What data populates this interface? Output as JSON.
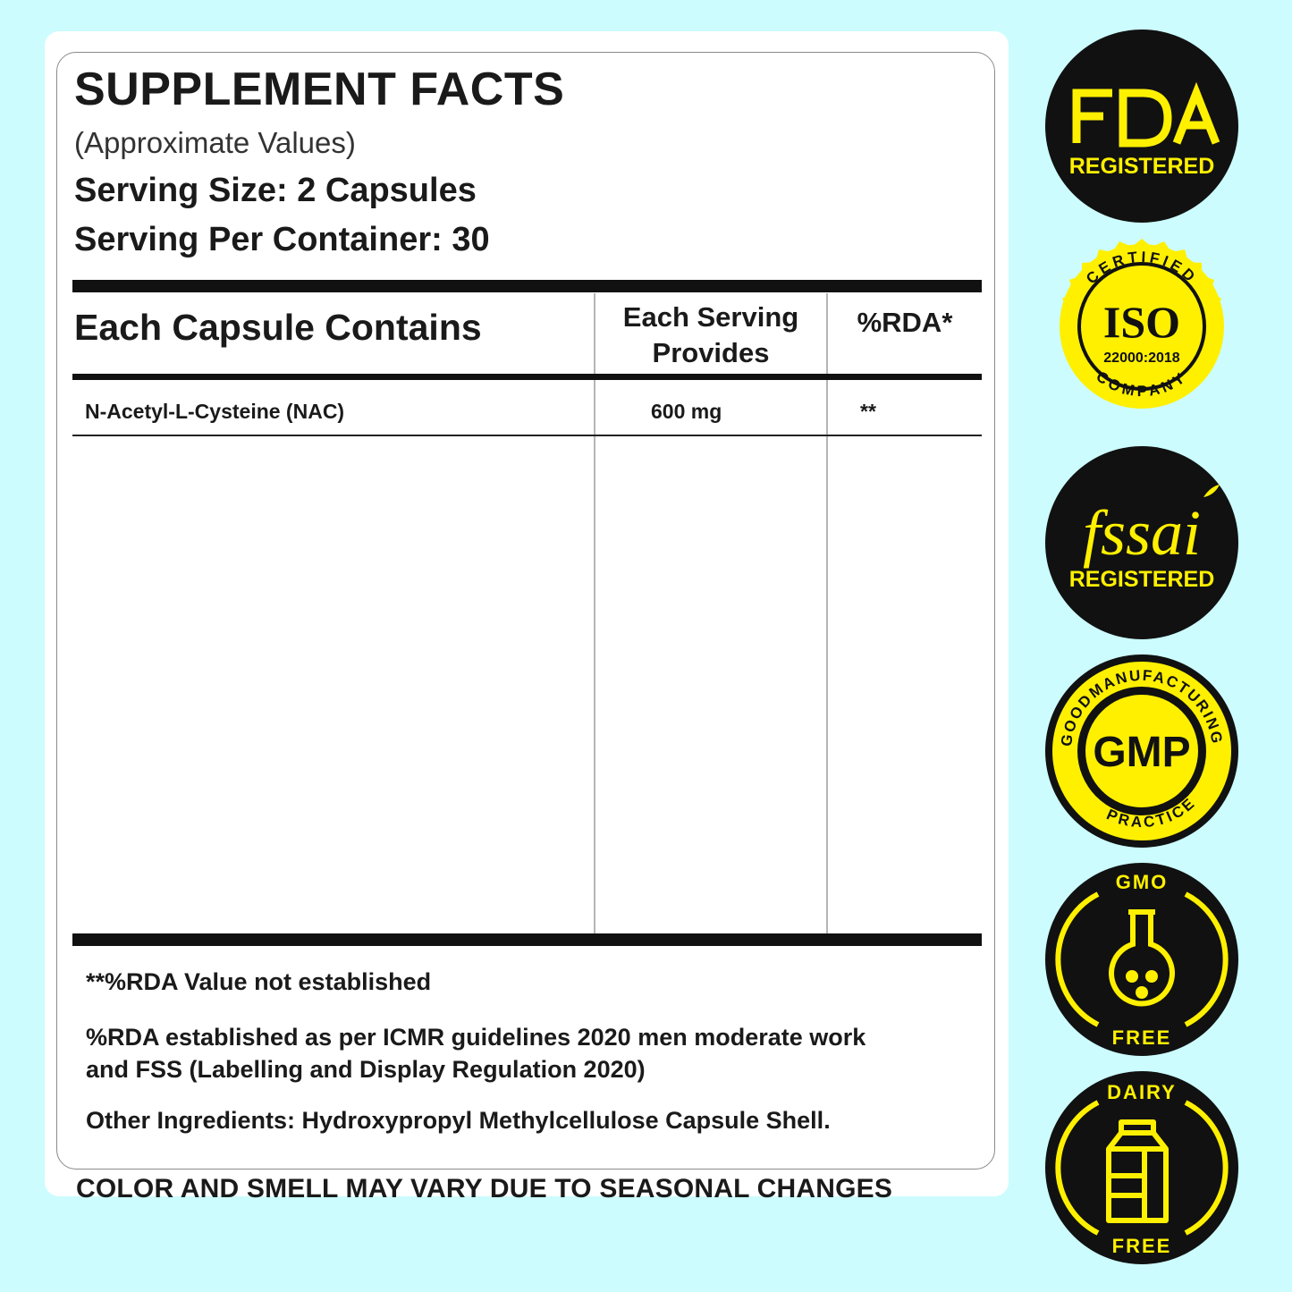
{
  "label": {
    "title": "SUPPLEMENT FACTS",
    "subtitle": "(Approximate Values)",
    "serving_size": "Serving Size: 2 Capsules",
    "servings_per_container": "Serving Per Container: 30"
  },
  "table": {
    "headers": [
      "Each Capsule Contains",
      "Each Serving Provides",
      "%RDA*"
    ],
    "rows": [
      {
        "ingredient": "N-Acetyl-L-Cysteine (NAC)",
        "amount": "600 mg",
        "rda": "**"
      }
    ]
  },
  "notes": {
    "rda_not_established": "**%RDA Value not established",
    "rda_basis_line1": "%RDA established as per ICMR guidelines 2020 men moderate work",
    "rda_basis_line2": "and FSS (Labelling and Display Regulation 2020)",
    "other_ingredients": "Other Ingredients: Hydroxypropyl Methylcellulose Capsule Shell."
  },
  "bottom_note": "COLOR AND SMELL MAY VARY DUE TO SEASONAL CHANGES",
  "badges": [
    {
      "icon": "fda-logo-icon",
      "label": "REGISTERED"
    },
    {
      "icon": "iso-seal-icon",
      "top": "CERTIFIED",
      "center": "ISO",
      "code": "22000:2018",
      "bottom": "COMPANY"
    },
    {
      "icon": "fssai-logo-icon",
      "logo": "fssai",
      "label": "REGISTERED"
    },
    {
      "icon": "gmp-seal-icon",
      "left": "GOOD",
      "top": "MANUFACTURING",
      "center": "GMP",
      "bottom": "PRACTICE"
    },
    {
      "icon": "flask-icon",
      "top": "GMO",
      "bottom": "FREE"
    },
    {
      "icon": "milk-carton-icon",
      "top": "DAIRY",
      "bottom": "FREE"
    }
  ],
  "colors": {
    "background": "#ccfcfe",
    "badge_black": "#111111",
    "badge_yellow": "#fff000"
  }
}
